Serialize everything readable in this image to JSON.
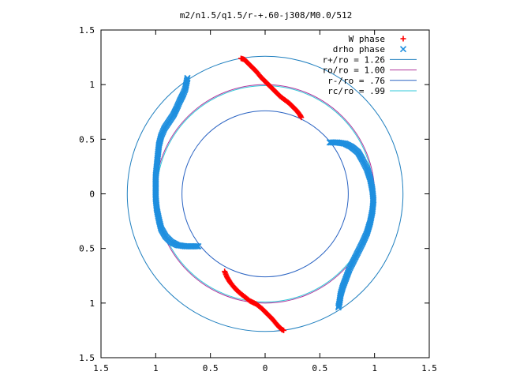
{
  "chart_data": {
    "type": "scatter",
    "title": "m2/n1.5/q1.5/r-+.60-j308/M0.0/512",
    "xlabel": "",
    "ylabel": "",
    "xlim": [
      -1.5,
      1.5
    ],
    "ylim": [
      -1.5,
      1.5
    ],
    "x_ticks": [
      -1.5,
      -1,
      -0.5,
      0,
      0.5,
      1,
      1.5
    ],
    "y_ticks": [
      -1.5,
      -1,
      -0.5,
      0,
      0.5,
      1,
      1.5
    ],
    "x_tick_labels": [
      "1.5",
      "1",
      "0.5",
      "0",
      "0.5",
      "1",
      "1.5"
    ],
    "y_tick_labels": [
      "1.5",
      "1",
      "0.5",
      "0",
      "0.5",
      "1",
      "1.5"
    ],
    "grid": false,
    "legend_position": "top-right",
    "circles": [
      {
        "name": "r+/ro = 1.26",
        "radius": 1.26,
        "color": "#1f7fbf"
      },
      {
        "name": "ro/ro = 1.00",
        "radius": 1.0,
        "color": "#b0359c"
      },
      {
        "name": "r-/ro = .76",
        "radius": 0.76,
        "color": "#2a63c2"
      },
      {
        "name": "rc/ro = .99",
        "radius": 0.99,
        "color": "#30c8d8"
      }
    ],
    "series": [
      {
        "name": "W phase",
        "marker": "+",
        "color": "#ff0000",
        "points": [
          [
            -0.22,
            1.24
          ],
          [
            -0.19,
            1.23
          ],
          [
            -0.16,
            1.2
          ],
          [
            -0.12,
            1.16
          ],
          [
            -0.08,
            1.12
          ],
          [
            -0.04,
            1.07
          ],
          [
            0.0,
            1.03
          ],
          [
            0.04,
            0.99
          ],
          [
            0.09,
            0.94
          ],
          [
            0.14,
            0.89
          ],
          [
            0.18,
            0.86
          ],
          [
            0.22,
            0.83
          ],
          [
            0.26,
            0.79
          ],
          [
            0.29,
            0.76
          ],
          [
            0.32,
            0.72
          ],
          [
            0.33,
            0.7
          ],
          [
            -0.37,
            -0.71
          ],
          [
            -0.35,
            -0.76
          ],
          [
            -0.32,
            -0.81
          ],
          [
            -0.28,
            -0.86
          ],
          [
            -0.24,
            -0.9
          ],
          [
            -0.19,
            -0.94
          ],
          [
            -0.14,
            -0.98
          ],
          [
            -0.08,
            -1.01
          ],
          [
            -0.03,
            -1.05
          ],
          [
            0.02,
            -1.1
          ],
          [
            0.07,
            -1.15
          ],
          [
            0.11,
            -1.2
          ],
          [
            0.15,
            -1.24
          ],
          [
            0.17,
            -1.25
          ]
        ]
      },
      {
        "name": "drho phase",
        "marker": "x",
        "color": "#1f8fdf",
        "points": [
          [
            -0.71,
            1.06
          ],
          [
            -0.72,
            1.01
          ],
          [
            -0.73,
            0.96
          ],
          [
            -0.75,
            0.91
          ],
          [
            -0.78,
            0.85
          ],
          [
            -0.81,
            0.78
          ],
          [
            -0.84,
            0.72
          ],
          [
            -0.88,
            0.66
          ],
          [
            -0.92,
            0.6
          ],
          [
            -0.95,
            0.53
          ],
          [
            -0.97,
            0.45
          ],
          [
            -0.98,
            0.36
          ],
          [
            -0.99,
            0.26
          ],
          [
            -1.0,
            0.16
          ],
          [
            -1.0,
            0.06
          ],
          [
            -1.0,
            -0.04
          ],
          [
            -0.99,
            -0.14
          ],
          [
            -0.97,
            -0.24
          ],
          [
            -0.95,
            -0.32
          ],
          [
            -0.91,
            -0.39
          ],
          [
            -0.86,
            -0.44
          ],
          [
            -0.8,
            -0.47
          ],
          [
            -0.73,
            -0.48
          ],
          [
            -0.66,
            -0.48
          ],
          [
            -0.61,
            -0.48
          ],
          [
            0.59,
            0.47
          ],
          [
            0.66,
            0.47
          ],
          [
            0.73,
            0.46
          ],
          [
            0.79,
            0.43
          ],
          [
            0.85,
            0.38
          ],
          [
            0.89,
            0.31
          ],
          [
            0.93,
            0.23
          ],
          [
            0.96,
            0.14
          ],
          [
            0.98,
            0.04
          ],
          [
            0.99,
            -0.06
          ],
          [
            0.98,
            -0.16
          ],
          [
            0.96,
            -0.26
          ],
          [
            0.93,
            -0.36
          ],
          [
            0.89,
            -0.45
          ],
          [
            0.85,
            -0.53
          ],
          [
            0.81,
            -0.61
          ],
          [
            0.77,
            -0.69
          ],
          [
            0.74,
            -0.77
          ],
          [
            0.71,
            -0.85
          ],
          [
            0.69,
            -0.92
          ],
          [
            0.68,
            -0.99
          ],
          [
            0.67,
            -1.04
          ]
        ]
      }
    ]
  }
}
